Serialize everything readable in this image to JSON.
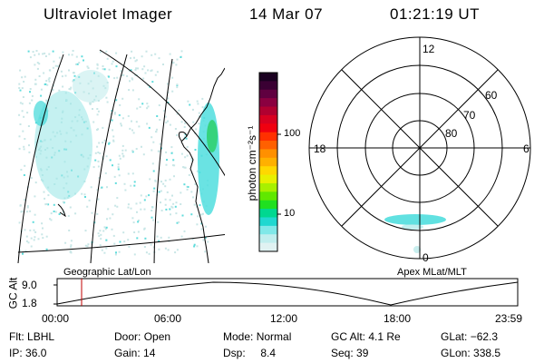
{
  "header": {
    "instrument": "Ultraviolet Imager",
    "date": "14 Mar 07",
    "time": "01:21:19 UT"
  },
  "colorbar": {
    "unit_label": "photon cm⁻²s⁻¹",
    "tick_labels": [
      "100",
      "10"
    ],
    "colors": [
      "#1a0020",
      "#3a0033",
      "#600040",
      "#8a0040",
      "#b00030",
      "#d80020",
      "#f00010",
      "#ff3000",
      "#ff6000",
      "#ff9000",
      "#ffb000",
      "#ffd800",
      "#e8f000",
      "#a8f000",
      "#60e800",
      "#20e020",
      "#00d890",
      "#20d8d0",
      "#80e8e8",
      "#c0eeee",
      "#e0f2f2"
    ]
  },
  "polar_plot": {
    "mlt_labels": {
      "top": "12",
      "left": "18",
      "right": "6",
      "bottom": "0"
    },
    "lat_labels": [
      "60",
      "70",
      "80"
    ]
  },
  "altitude_plot": {
    "left_caption": "Geographic Lat/Lon",
    "right_caption": "Apex MLat/MLT",
    "y_label": "GC Alt",
    "y_ticks": [
      "9.0",
      "1.8"
    ],
    "x_ticks": [
      "00:00",
      "06:00",
      "12:00",
      "18:00",
      "23:59"
    ]
  },
  "footer": {
    "row1": [
      {
        "label": "Flt:",
        "value": "LBHL"
      },
      {
        "label": "Door:",
        "value": "Open"
      },
      {
        "label": "Mode:",
        "value": "Normal"
      },
      {
        "label": "GC Alt:",
        "value": "4.1 Re"
      },
      {
        "label": "GLat:",
        "value": "−62.3"
      }
    ],
    "row2": [
      {
        "label": "IP:",
        "value": "36.0"
      },
      {
        "label": "Gain:",
        "value": "14"
      },
      {
        "label": "Dsp:",
        "value": "8.4"
      },
      {
        "label": "Seq:",
        "value": "39"
      },
      {
        "label": "GLon:",
        "value": "338.5"
      }
    ]
  },
  "colors": {
    "aurora_light": "#c8e8e8",
    "aurora_mid": "#40d8d8",
    "aurora_green": "#30d060",
    "time_marker": "#c00000"
  }
}
